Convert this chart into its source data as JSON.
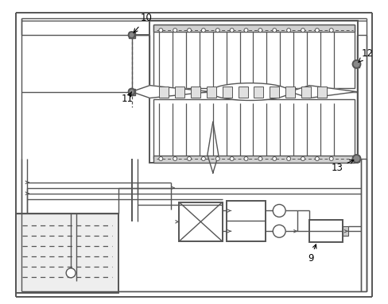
{
  "lc": "#555555",
  "lc2": "#444444",
  "figsize": [
    4.88,
    3.83
  ],
  "dpi": 100
}
